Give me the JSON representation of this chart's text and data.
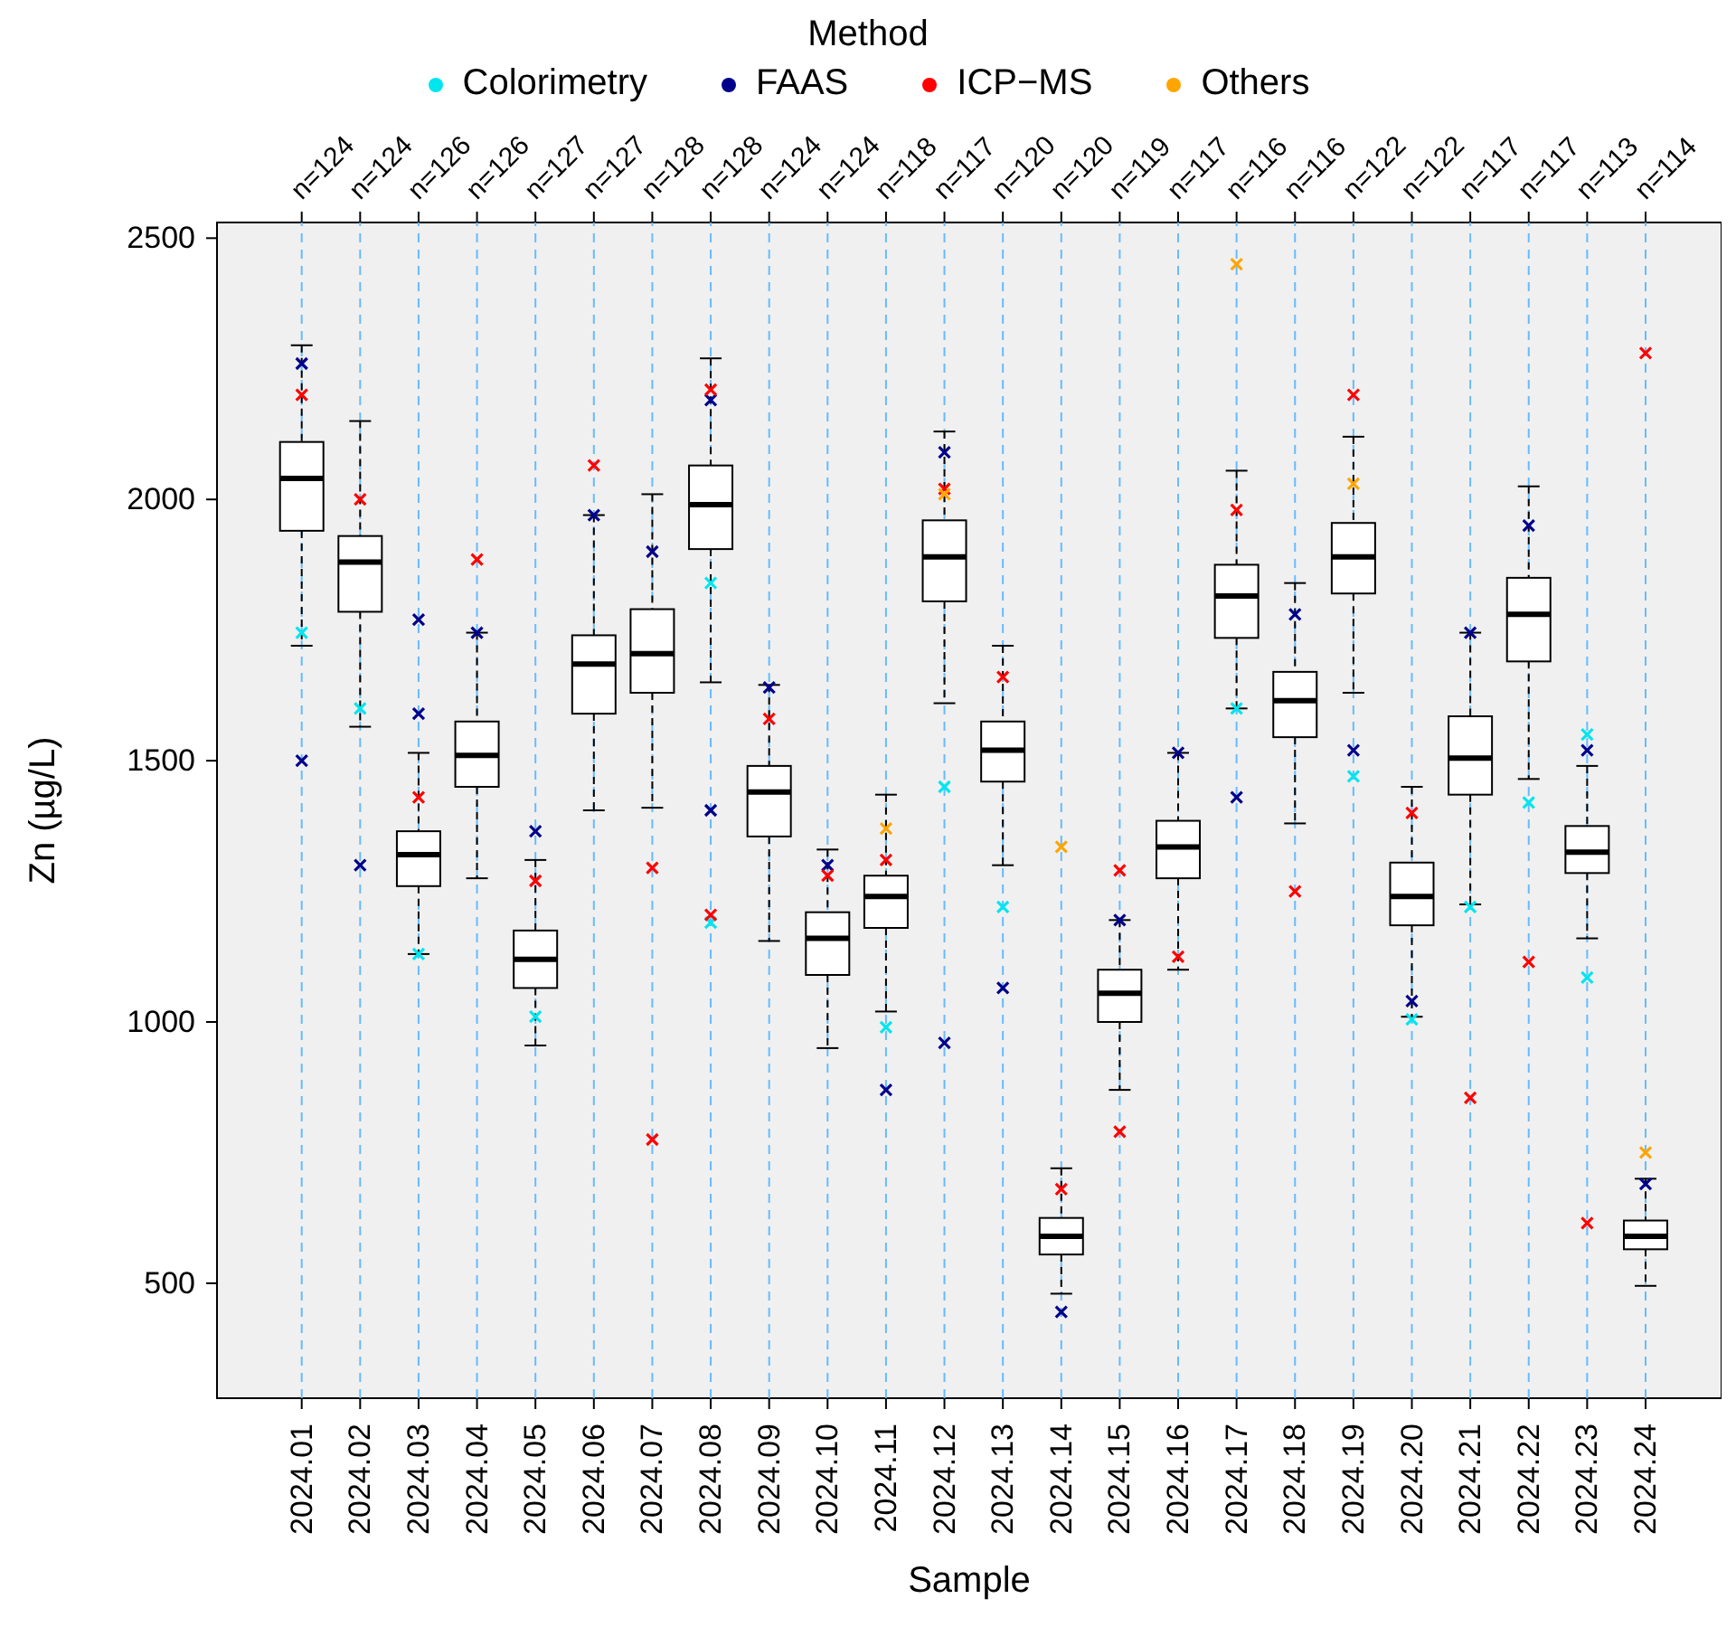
{
  "chart_data": {
    "type": "box",
    "xlabel": "Sample",
    "ylabel": "Zn (µg/L)",
    "legend_title": "Method",
    "legend": "top",
    "grid": "x",
    "marker": "cross",
    "categories": [
      "2024.01",
      "2024.02",
      "2024.03",
      "2024.04",
      "2024.05",
      "2024.06",
      "2024.07",
      "2024.08",
      "2024.09",
      "2024.10",
      "2024.11",
      "2024.12",
      "2024.13",
      "2024.14",
      "2024.15",
      "2024.16",
      "2024.17",
      "2024.18",
      "2024.19",
      "2024.20",
      "2024.21",
      "2024.22",
      "2024.23",
      "2024.24"
    ],
    "ylim": [
      280,
      2530
    ],
    "yticks": [
      500,
      1000,
      1500,
      2000,
      2500
    ],
    "boxes": [
      {
        "low": 1720,
        "q1": 1940,
        "median": 2040,
        "q3": 2110,
        "high": 2295
      },
      {
        "low": 1565,
        "q1": 1785,
        "median": 1880,
        "q3": 1930,
        "high": 2150
      },
      {
        "low": 1130,
        "q1": 1260,
        "median": 1320,
        "q3": 1365,
        "high": 1515
      },
      {
        "low": 1275,
        "q1": 1450,
        "median": 1510,
        "q3": 1575,
        "high": 1745
      },
      {
        "low": 955,
        "q1": 1065,
        "median": 1120,
        "q3": 1175,
        "high": 1310
      },
      {
        "low": 1405,
        "q1": 1590,
        "median": 1685,
        "q3": 1740,
        "high": 1970
      },
      {
        "low": 1410,
        "q1": 1630,
        "median": 1705,
        "q3": 1790,
        "high": 2010
      },
      {
        "low": 1650,
        "q1": 1905,
        "median": 1990,
        "q3": 2065,
        "high": 2270
      },
      {
        "low": 1155,
        "q1": 1355,
        "median": 1440,
        "q3": 1490,
        "high": 1645
      },
      {
        "low": 950,
        "q1": 1090,
        "median": 1160,
        "q3": 1210,
        "high": 1330
      },
      {
        "low": 1020,
        "q1": 1180,
        "median": 1240,
        "q3": 1280,
        "high": 1435
      },
      {
        "low": 1610,
        "q1": 1805,
        "median": 1890,
        "q3": 1960,
        "high": 2130
      },
      {
        "low": 1300,
        "q1": 1460,
        "median": 1520,
        "q3": 1575,
        "high": 1720
      },
      {
        "low": 480,
        "q1": 555,
        "median": 590,
        "q3": 625,
        "high": 720
      },
      {
        "low": 870,
        "q1": 1000,
        "median": 1055,
        "q3": 1100,
        "high": 1195
      },
      {
        "low": 1100,
        "q1": 1275,
        "median": 1335,
        "q3": 1385,
        "high": 1515
      },
      {
        "low": 1600,
        "q1": 1735,
        "median": 1815,
        "q3": 1875,
        "high": 2055
      },
      {
        "low": 1380,
        "q1": 1545,
        "median": 1615,
        "q3": 1670,
        "high": 1840
      },
      {
        "low": 1630,
        "q1": 1820,
        "median": 1890,
        "q3": 1955,
        "high": 2120
      },
      {
        "low": 1010,
        "q1": 1185,
        "median": 1240,
        "q3": 1305,
        "high": 1450
      },
      {
        "low": 1225,
        "q1": 1435,
        "median": 1505,
        "q3": 1585,
        "high": 1745
      },
      {
        "low": 1465,
        "q1": 1690,
        "median": 1780,
        "q3": 1850,
        "high": 2025
      },
      {
        "low": 1160,
        "q1": 1285,
        "median": 1325,
        "q3": 1375,
        "high": 1490
      },
      {
        "low": 495,
        "q1": 565,
        "median": 590,
        "q3": 620,
        "high": 700
      }
    ],
    "series": [
      {
        "name": "Colorimetry",
        "type": "scatter",
        "color": "#00e5ee",
        "x": [
          "2024.01",
          "2024.02",
          "2024.03",
          "2024.05",
          "2024.08",
          "2024.08",
          "2024.11",
          "2024.12",
          "2024.13",
          "2024.17",
          "2024.19",
          "2024.20",
          "2024.21",
          "2024.22",
          "2024.23",
          "2024.23"
        ],
        "values": [
          1745,
          1600,
          1130,
          1010,
          1190,
          1840,
          990,
          1450,
          1220,
          1600,
          1470,
          1005,
          1220,
          1420,
          1550,
          1085
        ]
      },
      {
        "name": "FAAS",
        "type": "scatter",
        "color": "#00008b",
        "x": [
          "2024.01",
          "2024.01",
          "2024.02",
          "2024.03",
          "2024.03",
          "2024.04",
          "2024.05",
          "2024.06",
          "2024.07",
          "2024.08",
          "2024.08",
          "2024.09",
          "2024.10",
          "2024.11",
          "2024.12",
          "2024.12",
          "2024.13",
          "2024.14",
          "2024.15",
          "2024.16",
          "2024.17",
          "2024.18",
          "2024.19",
          "2024.20",
          "2024.21",
          "2024.22",
          "2024.23",
          "2024.24"
        ],
        "values": [
          1500,
          2260,
          1300,
          1770,
          1590,
          1745,
          1365,
          1970,
          1900,
          1405,
          2190,
          1640,
          1300,
          870,
          960,
          2090,
          1065,
          445,
          1195,
          1515,
          1430,
          1780,
          1520,
          1040,
          1745,
          1950,
          1520,
          690
        ]
      },
      {
        "name": "ICP−MS",
        "type": "scatter",
        "color": "#ff0000",
        "x": [
          "2024.01",
          "2024.02",
          "2024.03",
          "2024.04",
          "2024.05",
          "2024.06",
          "2024.07",
          "2024.07",
          "2024.08",
          "2024.08",
          "2024.09",
          "2024.10",
          "2024.11",
          "2024.12",
          "2024.13",
          "2024.14",
          "2024.15",
          "2024.15",
          "2024.16",
          "2024.17",
          "2024.18",
          "2024.19",
          "2024.20",
          "2024.21",
          "2024.22",
          "2024.23",
          "2024.24"
        ],
        "values": [
          2200,
          2000,
          1430,
          1885,
          1270,
          2065,
          775,
          1295,
          1205,
          2210,
          1580,
          1280,
          1310,
          2020,
          1660,
          680,
          790,
          1290,
          1125,
          1980,
          1250,
          2200,
          1400,
          855,
          1115,
          615,
          2280
        ]
      },
      {
        "name": "Others",
        "type": "scatter",
        "color": "#ffa500",
        "x": [
          "2024.11",
          "2024.12",
          "2024.14",
          "2024.17",
          "2024.19",
          "2024.24"
        ],
        "values": [
          1370,
          2010,
          1335,
          2450,
          2030,
          750
        ]
      }
    ],
    "annotations": [
      "n=124",
      "n=124",
      "n=126",
      "n=126",
      "n=127",
      "n=127",
      "n=128",
      "n=128",
      "n=124",
      "n=124",
      "n=118",
      "n=117",
      "n=120",
      "n=120",
      "n=119",
      "n=117",
      "n=116",
      "n=116",
      "n=122",
      "n=122",
      "n=117",
      "n=117",
      "n=113",
      "n=114"
    ]
  }
}
